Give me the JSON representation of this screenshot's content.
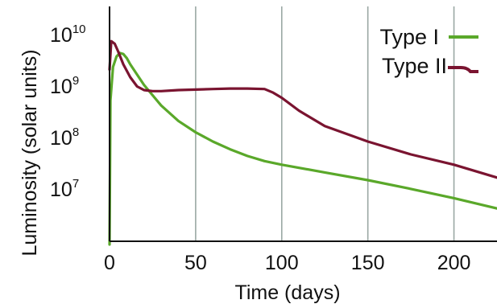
{
  "chart_data": {
    "type": "line",
    "xlabel": "Time (days)",
    "ylabel": "Luminosity (solar units)",
    "x_ticks": [
      "0",
      "50",
      "100",
      "150",
      "200"
    ],
    "x_tick_values": [
      0,
      50,
      100,
      150,
      200
    ],
    "y_ticks": [
      {
        "base": "10",
        "exp": "10",
        "value": 10
      },
      {
        "base": "10",
        "exp": "9",
        "value": 9
      },
      {
        "base": "10",
        "exp": "8",
        "value": 8
      },
      {
        "base": "10",
        "exp": "7",
        "value": 7
      }
    ],
    "y_scale": "log",
    "xlim": [
      0,
      225
    ],
    "ylim_log10": [
      6.0,
      10.25
    ],
    "grid": "x",
    "legend": "top-right",
    "colors": {
      "type1": "#5aa82a",
      "type2": "#7a1430",
      "grid": "#9aa8a4",
      "axis": "#111111"
    },
    "series": [
      {
        "name": "Type I",
        "color": "#5aa82a",
        "x": [
          0,
          0.5,
          2,
          4,
          6,
          8,
          10,
          12,
          15,
          20,
          25,
          30,
          40,
          50,
          60,
          70,
          80,
          90,
          100,
          125,
          150,
          175,
          200,
          225
        ],
        "log10_L": [
          6.0,
          8.8,
          9.45,
          9.65,
          9.72,
          9.7,
          9.62,
          9.5,
          9.35,
          9.1,
          8.9,
          8.7,
          8.4,
          8.18,
          8.0,
          7.85,
          7.72,
          7.62,
          7.55,
          7.4,
          7.25,
          7.08,
          6.9,
          6.7
        ]
      },
      {
        "name": "Type II",
        "color": "#7a1430",
        "x": [
          0,
          1,
          3,
          5,
          8,
          12,
          16,
          20,
          25,
          30,
          40,
          50,
          60,
          70,
          80,
          90,
          95,
          100,
          110,
          125,
          150,
          175,
          200,
          225
        ],
        "log10_L": [
          9.4,
          9.95,
          9.9,
          9.75,
          9.5,
          9.25,
          9.07,
          9.0,
          8.98,
          8.98,
          9.0,
          9.01,
          9.02,
          9.03,
          9.03,
          9.02,
          8.95,
          8.85,
          8.6,
          8.3,
          8.0,
          7.75,
          7.55,
          7.3
        ]
      }
    ]
  }
}
